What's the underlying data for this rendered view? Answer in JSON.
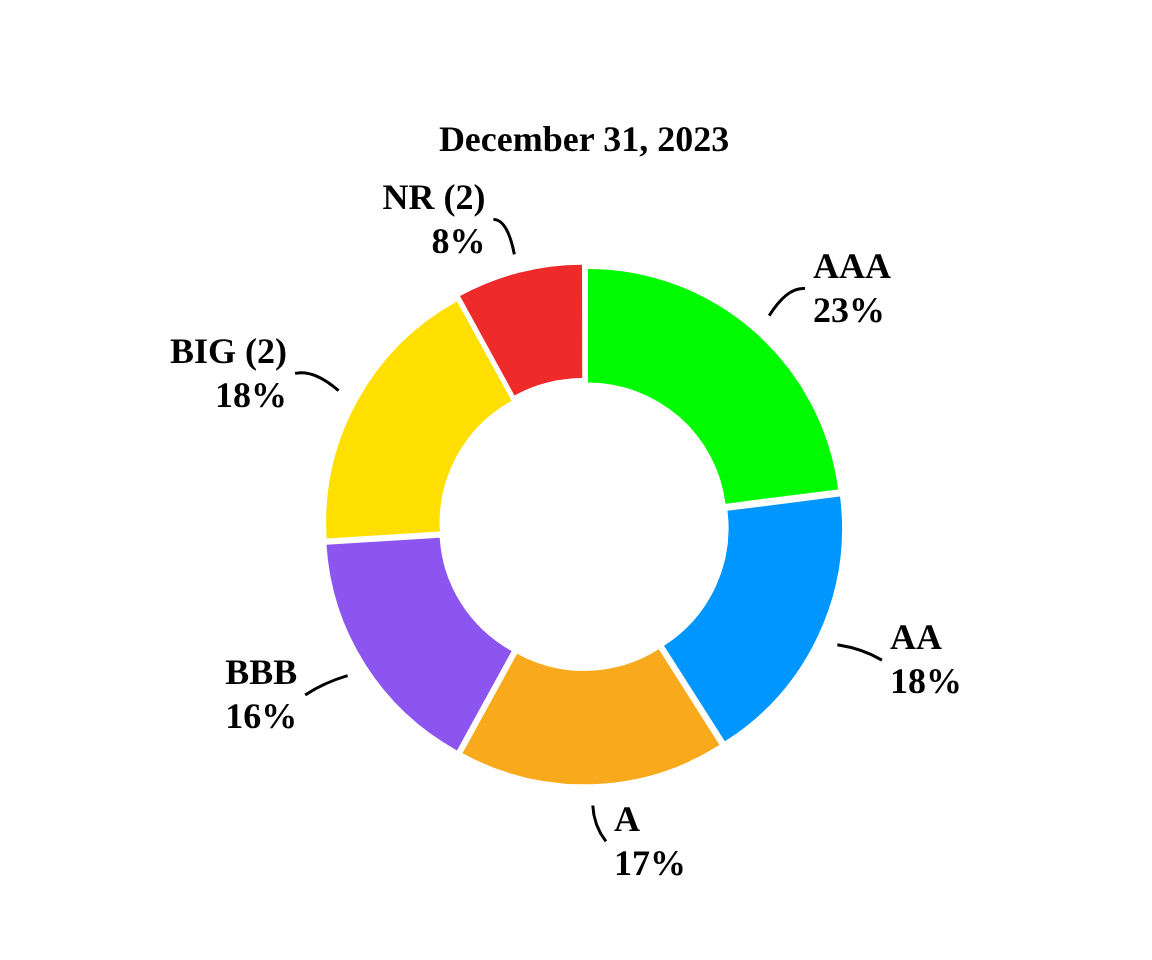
{
  "chart_data": {
    "type": "donut",
    "title": "December 31, 2023",
    "categories": [
      "AAA",
      "AA",
      "A",
      "BBB",
      "BIG (2)",
      "NR (2)"
    ],
    "values": [
      23,
      18,
      17,
      16,
      18,
      8
    ],
    "value_labels": [
      "23%",
      "18%",
      "17%",
      "16%",
      "18%",
      "8%"
    ],
    "colors": [
      "#00fa00",
      "#0096ff",
      "#f9aa1c",
      "#8c55ef",
      "#ffdf00",
      "#ee2a2a"
    ],
    "legend": false
  }
}
